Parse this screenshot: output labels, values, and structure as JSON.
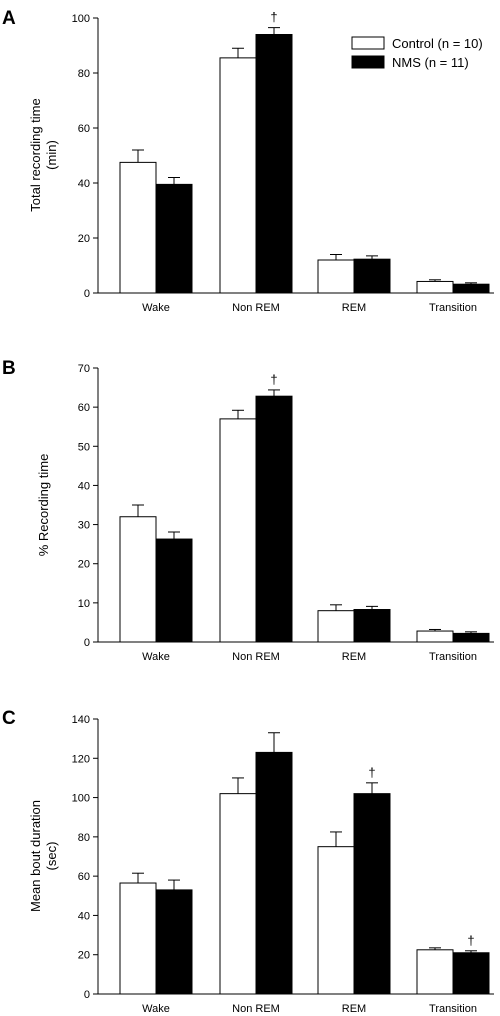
{
  "legend": {
    "control_label": "Control (n = 10)",
    "nms_label": "NMS (n = 11)"
  },
  "significance_marker": "†",
  "chart_data": [
    {
      "panel_label": "A",
      "type": "bar",
      "categories": [
        "Wake",
        "Non REM",
        "REM",
        "Transition"
      ],
      "ylabel": [
        "Total recording time",
        "(min)"
      ],
      "ylim": [
        0,
        100
      ],
      "yticks": [
        0,
        20,
        40,
        60,
        80,
        100
      ],
      "series": [
        {
          "name": "Control (n = 10)",
          "color": "#ffffff",
          "values": [
            47.5,
            85.5,
            12.0,
            4.2
          ],
          "errors": [
            4.5,
            3.5,
            2.0,
            0.6
          ]
        },
        {
          "name": "NMS (n = 11)",
          "color": "#000000",
          "values": [
            39.5,
            94.0,
            12.3,
            3.2
          ],
          "errors": [
            2.5,
            2.5,
            1.2,
            0.5
          ]
        }
      ],
      "significant": [
        {
          "series": 1,
          "category": 1
        }
      ],
      "legend_position": "top-right"
    },
    {
      "panel_label": "B",
      "type": "bar",
      "categories": [
        "Wake",
        "Non REM",
        "REM",
        "Transition"
      ],
      "ylabel": [
        "% Recording time"
      ],
      "ylim": [
        0,
        70
      ],
      "yticks": [
        0,
        10,
        20,
        30,
        40,
        50,
        60,
        70
      ],
      "series": [
        {
          "name": "Control (n = 10)",
          "color": "#ffffff",
          "values": [
            32.0,
            57.0,
            8.0,
            2.8
          ],
          "errors": [
            3.0,
            2.2,
            1.5,
            0.4
          ]
        },
        {
          "name": "NMS (n = 11)",
          "color": "#000000",
          "values": [
            26.3,
            62.8,
            8.3,
            2.2
          ],
          "errors": [
            1.8,
            1.6,
            0.8,
            0.4
          ]
        }
      ],
      "significant": [
        {
          "series": 1,
          "category": 1
        }
      ]
    },
    {
      "panel_label": "C",
      "type": "bar",
      "categories": [
        "Wake",
        "Non REM",
        "REM",
        "Transition"
      ],
      "ylabel": [
        "Mean bout duration",
        "(sec)"
      ],
      "ylim": [
        0,
        140
      ],
      "yticks": [
        0,
        20,
        40,
        60,
        80,
        100,
        120,
        140
      ],
      "series": [
        {
          "name": "Control (n = 10)",
          "color": "#ffffff",
          "values": [
            56.5,
            102.0,
            75.0,
            22.5
          ],
          "errors": [
            5.0,
            8.0,
            7.5,
            1.0
          ]
        },
        {
          "name": "NMS (n = 11)",
          "color": "#000000",
          "values": [
            53.0,
            123.0,
            102.0,
            21.0
          ],
          "errors": [
            5.0,
            10.0,
            5.5,
            1.0
          ]
        }
      ],
      "significant": [
        {
          "series": 1,
          "category": 2
        },
        {
          "series": 1,
          "category": 3
        }
      ]
    }
  ]
}
